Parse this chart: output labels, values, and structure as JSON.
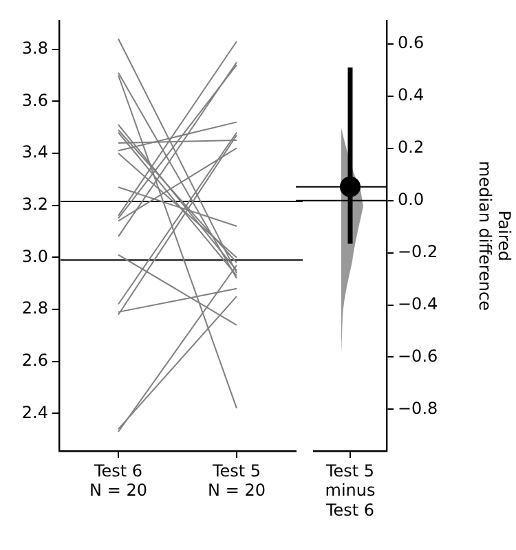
{
  "chart_data": [
    {
      "type": "line",
      "categories": [
        "Test 6\nN = 20",
        "Test 5\nN = 20"
      ],
      "series": [
        {
          "color": "#7f7f7f",
          "values": [
            3.84,
            2.94
          ]
        },
        {
          "color": "#7f7f7f",
          "values": [
            3.71,
            2.92
          ]
        },
        {
          "color": "#7f7f7f",
          "values": [
            3.7,
            2.42
          ]
        },
        {
          "color": "#7f7f7f",
          "values": [
            3.51,
            2.95
          ]
        },
        {
          "color": "#7f7f7f",
          "values": [
            3.49,
            2.98
          ]
        },
        {
          "color": "#7f7f7f",
          "values": [
            3.48,
            2.93
          ]
        },
        {
          "color": "#7f7f7f",
          "values": [
            3.44,
            3.45
          ]
        },
        {
          "color": "#7f7f7f",
          "values": [
            3.41,
            3.52
          ]
        },
        {
          "color": "#7f7f7f",
          "values": [
            3.4,
            3.0
          ]
        },
        {
          "color": "#7f7f7f",
          "values": [
            3.27,
            3.12
          ]
        },
        {
          "color": "#7f7f7f",
          "values": [
            3.16,
            3.83
          ]
        },
        {
          "color": "#7f7f7f",
          "values": [
            3.15,
            3.74
          ]
        },
        {
          "color": "#7f7f7f",
          "values": [
            3.14,
            3.42
          ]
        },
        {
          "color": "#7f7f7f",
          "values": [
            3.08,
            3.75
          ]
        },
        {
          "color": "#7f7f7f",
          "values": [
            3.01,
            2.74
          ]
        },
        {
          "color": "#7f7f7f",
          "values": [
            2.82,
            3.48
          ]
        },
        {
          "color": "#7f7f7f",
          "values": [
            2.78,
            3.47
          ]
        },
        {
          "color": "#7f7f7f",
          "values": [
            2.79,
            2.88
          ]
        },
        {
          "color": "#7f7f7f",
          "values": [
            2.33,
            2.97
          ]
        },
        {
          "color": "#7f7f7f",
          "values": [
            2.34,
            2.85
          ]
        }
      ],
      "ylim": [
        2.256,
        3.91
      ],
      "yticks": [
        2.4,
        2.6,
        2.8,
        {
          "value": 3,
          "label": "3.0"
        },
        3.2,
        3.4,
        3.6,
        3.8
      ],
      "marker": "none",
      "grid": false,
      "legend": false,
      "ref_lines": [
        {
          "axis": "y",
          "value": 3.215,
          "color": "#000000"
        },
        {
          "axis": "y",
          "value": 2.99,
          "color": "#000000"
        }
      ]
    },
    {
      "type": "scatter",
      "categories": [
        "Test 5\nminus\nTest 6"
      ],
      "values": [
        0.053
      ],
      "errors": [
        [
          -0.165,
          0.51
        ]
      ],
      "color": "#000000",
      "ylabel": "Paired\nmedian difference",
      "ylim": [
        -0.96,
        0.69
      ],
      "yticks": [
        {
          "value": -0.8,
          "label": "−0.8"
        },
        {
          "value": -0.6,
          "label": "−0.6"
        },
        {
          "value": -0.4,
          "label": "−0.4"
        },
        {
          "value": -0.2,
          "label": "−0.2"
        },
        {
          "value": 0,
          "label": "0.0"
        },
        0.2,
        0.4,
        0.6
      ],
      "marker": "circle",
      "grid": false,
      "legend": false,
      "ref_lines": [
        {
          "axis": "y",
          "value": 0,
          "color": "#000000"
        },
        {
          "axis": "y",
          "value": 0.053,
          "color": "#000000"
        }
      ]
    }
  ]
}
